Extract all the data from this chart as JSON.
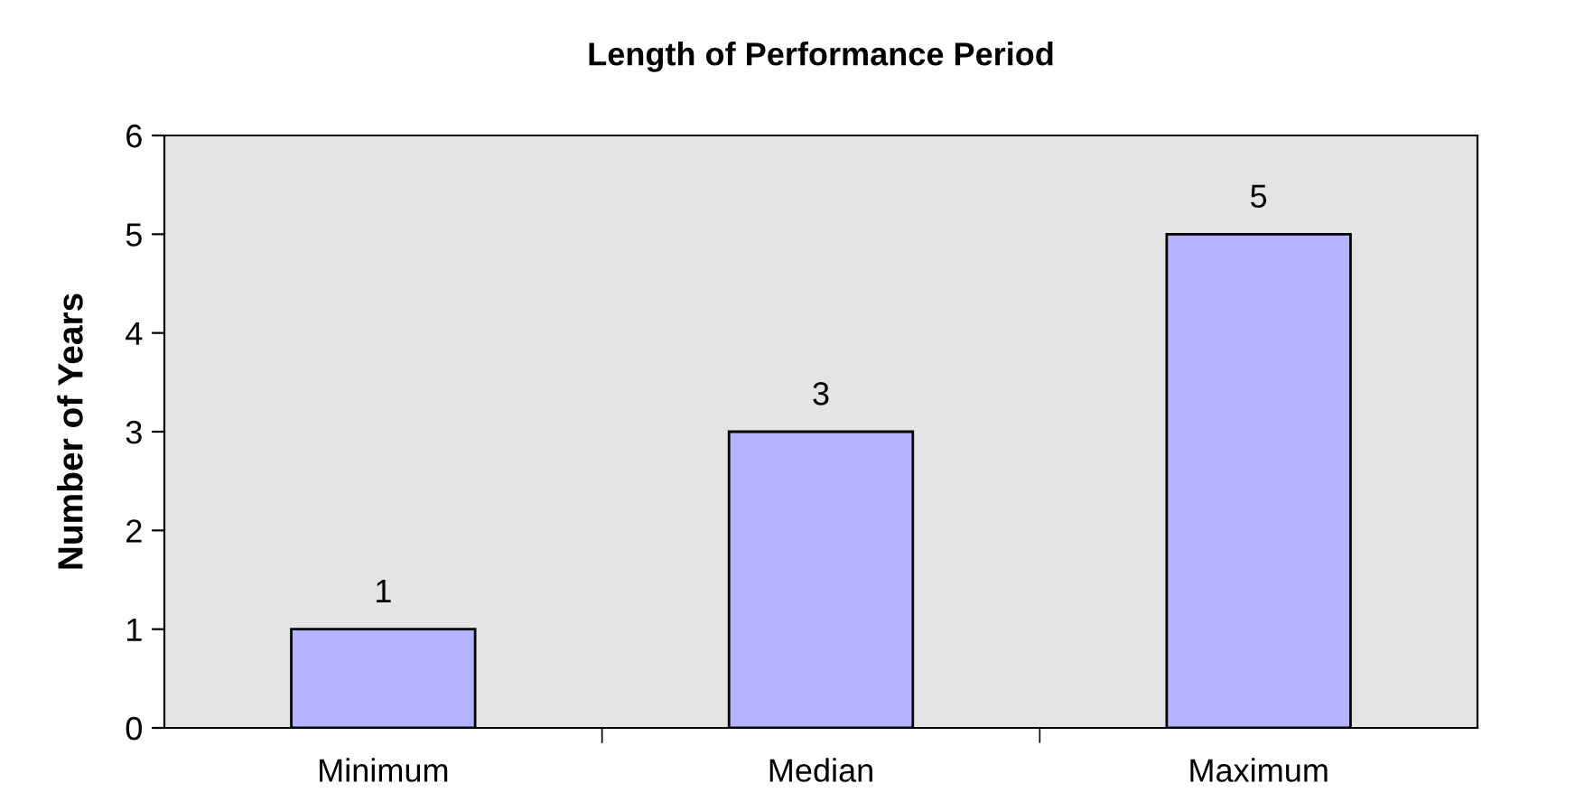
{
  "chart_data": {
    "type": "bar",
    "title": "Length of Performance Period",
    "ylabel": "Number of Years",
    "categories": [
      "Minimum",
      "Median",
      "Maximum"
    ],
    "values": [
      1,
      3,
      5
    ],
    "color": "#b3b3ff",
    "ylim": [
      0,
      6
    ],
    "yticks": [
      0,
      1,
      2,
      3,
      4,
      5,
      6
    ],
    "grid": false,
    "data_labels": true
  }
}
